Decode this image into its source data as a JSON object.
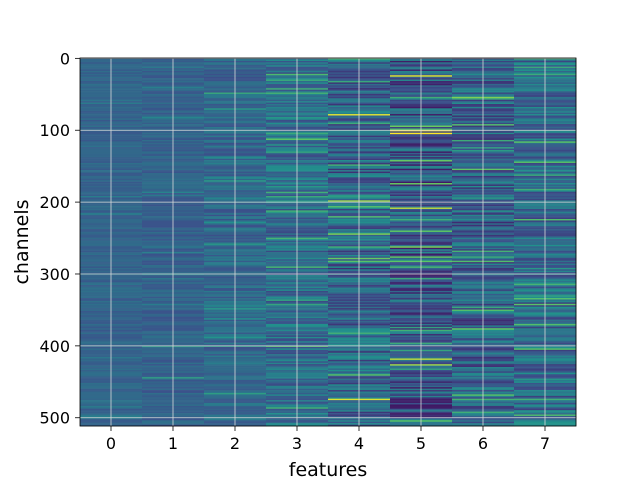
{
  "chart_data": {
    "type": "heatmap",
    "title": "",
    "xlabel": "features",
    "ylabel": "channels",
    "x_ticks": [
      "0",
      "1",
      "2",
      "3",
      "4",
      "5",
      "6",
      "7"
    ],
    "y_ticks": [
      "0",
      "100",
      "200",
      "300",
      "400",
      "500"
    ],
    "xlim": [
      -0.5,
      7.5
    ],
    "ylim": [
      0,
      512
    ],
    "y_inverted": true,
    "grid": true,
    "colormap": "viridis",
    "n_features": 8,
    "n_channels": 512,
    "colors": {
      "low": "#440154",
      "mid": "#21918c",
      "high": "#fde725",
      "grid": "#d9d9d9",
      "frame": "#000000"
    },
    "column_baseline": [
      0.32,
      0.31,
      0.33,
      0.36,
      0.32,
      0.27,
      0.31,
      0.35
    ],
    "column_spread": [
      0.05,
      0.06,
      0.09,
      0.14,
      0.18,
      0.2,
      0.18,
      0.16
    ],
    "highlights": [
      {
        "feature": 1,
        "channel": 400,
        "level": 0.55
      },
      {
        "feature": 1,
        "channel": 300,
        "level": 0.45
      },
      {
        "feature": 1,
        "channel": 445,
        "level": 0.55
      },
      {
        "feature": 2,
        "channel": 48,
        "level": 0.6
      },
      {
        "feature": 2,
        "channel": 400,
        "level": 0.55
      },
      {
        "feature": 3,
        "channel": 113,
        "level": 0.75
      },
      {
        "feature": 3,
        "channel": 250,
        "level": 0.65
      },
      {
        "feature": 3,
        "channel": 400,
        "level": 0.7
      },
      {
        "feature": 4,
        "channel": 78,
        "level": 0.95
      },
      {
        "feature": 4,
        "channel": 198,
        "level": 0.85
      },
      {
        "feature": 4,
        "channel": 245,
        "level": 0.8
      },
      {
        "feature": 4,
        "channel": 474,
        "level": 0.95
      },
      {
        "feature": 5,
        "channel": 25,
        "level": 0.95
      },
      {
        "feature": 5,
        "channel": 100,
        "level": 1.0
      },
      {
        "feature": 5,
        "channel": 104,
        "level": 1.0
      },
      {
        "feature": 5,
        "channel": 208,
        "level": 0.9
      },
      {
        "feature": 5,
        "channel": 240,
        "level": 0.75
      },
      {
        "feature": 5,
        "channel": 262,
        "level": 0.8
      },
      {
        "feature": 5,
        "channel": 418,
        "level": 0.9
      },
      {
        "feature": 5,
        "channel": 427,
        "level": 0.85
      },
      {
        "feature": 6,
        "channel": 55,
        "level": 0.8
      },
      {
        "feature": 6,
        "channel": 92,
        "level": 0.7
      },
      {
        "feature": 6,
        "channel": 155,
        "level": 0.75
      },
      {
        "feature": 6,
        "channel": 283,
        "level": 0.7
      },
      {
        "feature": 6,
        "channel": 350,
        "level": 0.7
      },
      {
        "feature": 7,
        "channel": 0,
        "level": 0.65
      },
      {
        "feature": 7,
        "channel": 225,
        "level": 0.7
      },
      {
        "feature": 7,
        "channel": 315,
        "level": 0.65
      },
      {
        "feature": 7,
        "channel": 370,
        "level": 0.7
      }
    ]
  }
}
